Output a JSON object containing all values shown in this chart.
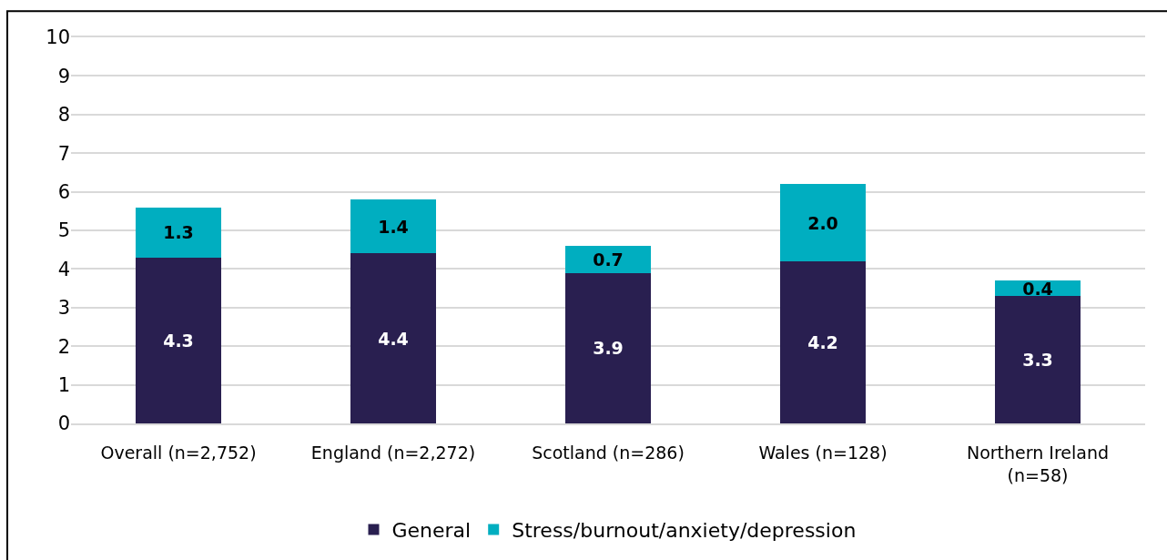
{
  "chart_data": {
    "type": "bar",
    "stacked": true,
    "categories": [
      "Overall (n=2,752)",
      "England (n=2,272)",
      "Scotland (n=286)",
      "Wales (n=128)",
      "Northern Ireland (n=58)"
    ],
    "series": [
      {
        "name": "General",
        "color": "#291f50",
        "values": [
          4.3,
          4.4,
          3.9,
          4.2,
          3.3
        ],
        "value_labels": [
          "4.3",
          "4.4",
          "3.9",
          "4.2",
          "3.3"
        ]
      },
      {
        "name": "Stress/burnout/anxiety/depression",
        "color": "#00aec0",
        "values": [
          1.3,
          1.4,
          0.7,
          2.0,
          0.4
        ],
        "value_labels": [
          "1.3",
          "1.4",
          "0.7",
          "2.0",
          "0.4"
        ]
      }
    ],
    "ylim": [
      0,
      10
    ],
    "yticks": [
      0,
      1,
      2,
      3,
      4,
      5,
      6,
      7,
      8,
      9,
      10
    ],
    "grid": "y",
    "legend": "bottom"
  }
}
